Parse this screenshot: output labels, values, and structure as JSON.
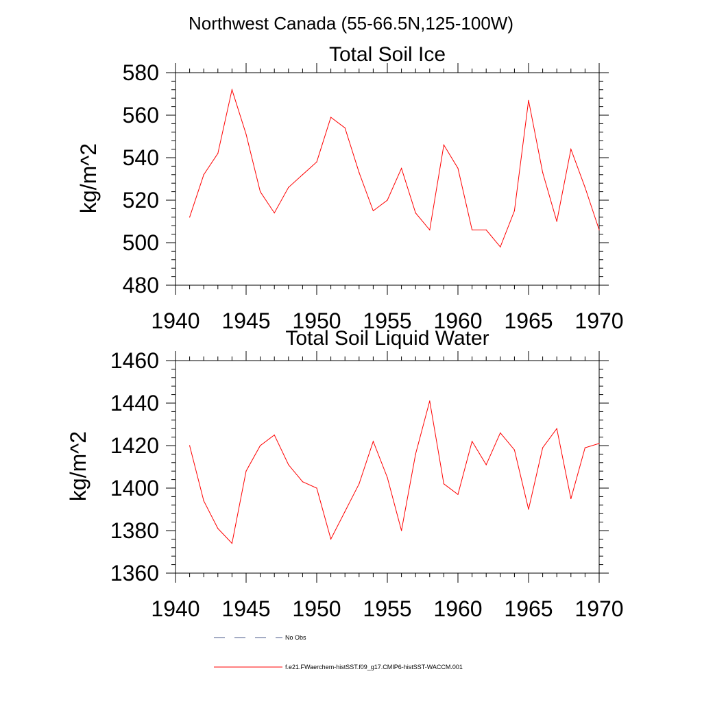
{
  "figure_title": "Northwest Canada (55-66.5N,125-100W)",
  "colors": {
    "model": "#ff0000",
    "obs": "#4a5a8a",
    "axis": "#000000"
  },
  "legend": {
    "obs_label": "No Obs",
    "model_label": "f.e21.FWaerchem-histSST.f09_g17.CMIP6-histSST-WACCM.001"
  },
  "chart_data": [
    {
      "type": "line",
      "title": "Total Soil Ice",
      "xlabel": "",
      "ylabel": "kg/m^2",
      "xlim": [
        1940,
        1970
      ],
      "ylim": [
        480,
        580
      ],
      "xticks": [
        1940,
        1945,
        1950,
        1955,
        1960,
        1965,
        1970
      ],
      "yticks": [
        480,
        500,
        520,
        540,
        560,
        580
      ],
      "grid": false,
      "series": [
        {
          "x": [
            1941,
            1942,
            1943,
            1944,
            1945,
            1946,
            1947,
            1948,
            1949,
            1950,
            1951,
            1952,
            1953,
            1954,
            1955,
            1956,
            1957,
            1958,
            1959,
            1960,
            1961,
            1962,
            1963,
            1964,
            1965,
            1966,
            1967,
            1968,
            1969,
            1970
          ],
          "values": [
            512,
            532,
            542,
            572,
            551,
            524,
            514,
            526,
            532,
            538,
            559,
            554,
            533,
            515,
            520,
            535,
            514,
            506,
            546,
            535,
            506,
            506,
            498,
            515,
            567,
            533,
            510,
            544,
            526,
            506
          ]
        }
      ]
    },
    {
      "type": "line",
      "title": "Total Soil Liquid Water",
      "xlabel": "",
      "ylabel": "kg/m^2",
      "xlim": [
        1940,
        1970
      ],
      "ylim": [
        1360,
        1460
      ],
      "xticks": [
        1940,
        1945,
        1950,
        1955,
        1960,
        1965,
        1970
      ],
      "yticks": [
        1360,
        1380,
        1400,
        1420,
        1440,
        1460
      ],
      "grid": false,
      "series": [
        {
          "x": [
            1941,
            1942,
            1943,
            1944,
            1945,
            1946,
            1947,
            1948,
            1949,
            1950,
            1951,
            1952,
            1953,
            1954,
            1955,
            1956,
            1957,
            1958,
            1959,
            1960,
            1961,
            1962,
            1963,
            1964,
            1965,
            1966,
            1967,
            1968,
            1969,
            1970
          ],
          "values": [
            1420,
            1394,
            1381,
            1374,
            1408,
            1420,
            1425,
            1411,
            1403,
            1400,
            1376,
            1389,
            1402,
            1422,
            1405,
            1380,
            1416,
            1441,
            1402,
            1397,
            1422,
            1411,
            1426,
            1418,
            1390,
            1419,
            1428,
            1395,
            1419,
            1421
          ]
        }
      ]
    }
  ]
}
